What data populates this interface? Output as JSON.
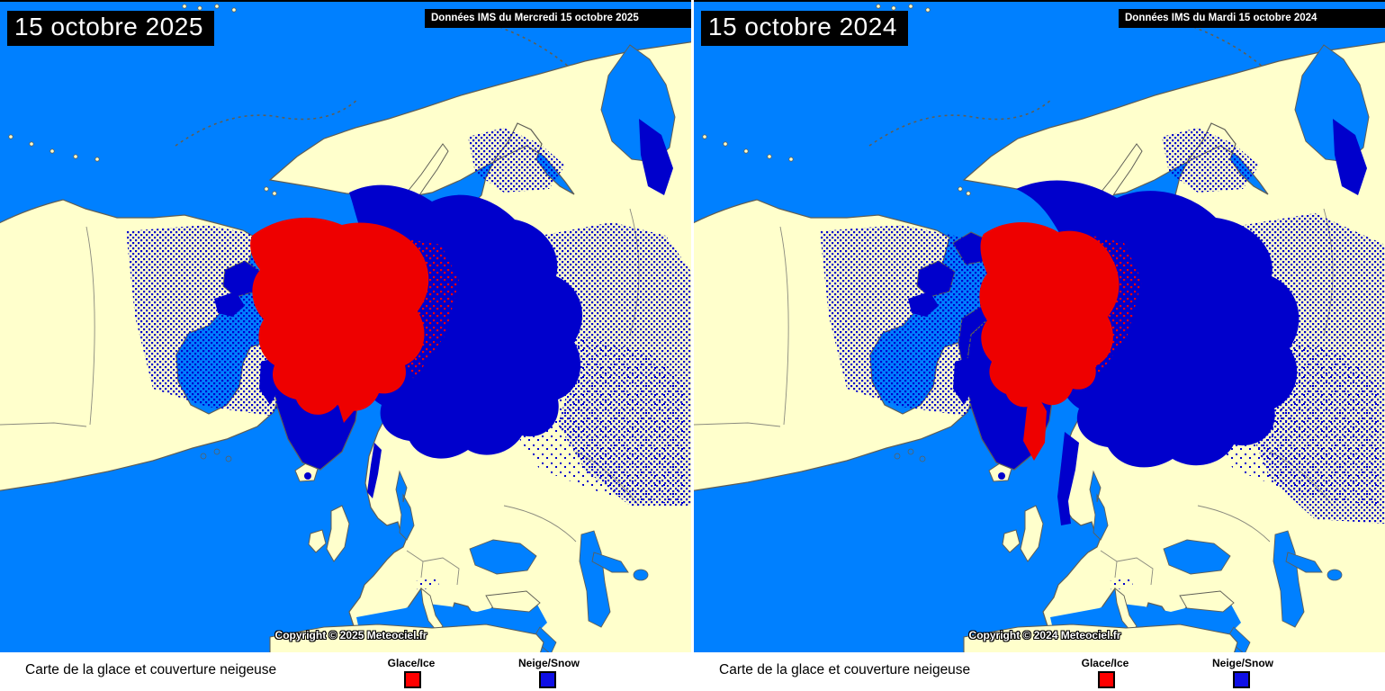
{
  "palette": {
    "ocean": "#0080FF",
    "land": "#FFFFCC",
    "snow": "#0000CC",
    "ice": "#EE0000",
    "coastline": "#5E5E56",
    "country_border": "#8A8A7E",
    "banner_background": "#000000",
    "banner_text": "#FFFFFF",
    "legend_ice_swatch": "#FF0000",
    "legend_snow_swatch": "#0F0FE6",
    "legend_text": "#000000",
    "strip_background": "#FFFFFF"
  },
  "panels": [
    {
      "title": "15 octobre 2025",
      "banner": "Données IMS du Mercredi 15 octobre 2025",
      "copyright": "Copyright © 2025 Meteociel.fr",
      "legend": {
        "caption": "Carte de la glace et couverture neigeuse",
        "ice_label": "Glace/Ice",
        "snow_label": "Neige/Snow"
      }
    },
    {
      "title": "15 octobre 2024",
      "banner": "Données IMS du Mardi 15 octobre 2024",
      "copyright": "Copyright © 2024 Meteociel.fr",
      "legend": {
        "caption": "Carte de la glace et couverture neigeuse",
        "ice_label": "Glace/Ice",
        "snow_label": "Neige/Snow"
      }
    }
  ]
}
